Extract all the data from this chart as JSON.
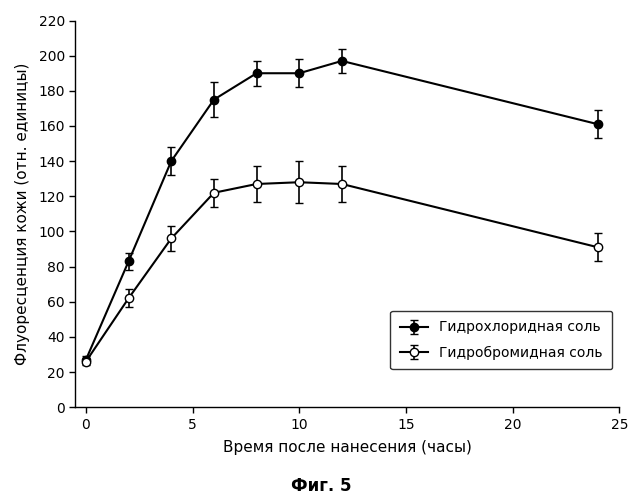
{
  "series1_name": "Гидрохлоридная соль",
  "series2_name": "Гидробромидная соль",
  "series1_x": [
    0,
    2,
    4,
    6,
    8,
    10,
    12,
    24
  ],
  "series1_y": [
    27,
    83,
    140,
    175,
    190,
    190,
    197,
    161
  ],
  "series1_yerr": [
    2,
    5,
    8,
    10,
    7,
    8,
    7,
    8
  ],
  "series2_x": [
    0,
    2,
    4,
    6,
    8,
    10,
    12,
    24
  ],
  "series2_y": [
    26,
    62,
    96,
    122,
    127,
    128,
    127,
    91
  ],
  "series2_yerr": [
    2,
    5,
    7,
    8,
    10,
    12,
    10,
    8
  ],
  "xlabel": "Время после нанесения (часы)",
  "ylabel": "Флуоресценция кожи (отн. единицы)",
  "caption": "Фиг. 5",
  "xlim": [
    -0.5,
    25
  ],
  "ylim": [
    0,
    220
  ],
  "xticks": [
    0,
    5,
    10,
    15,
    20,
    25
  ],
  "yticks": [
    0,
    20,
    40,
    60,
    80,
    100,
    120,
    140,
    160,
    180,
    200,
    220
  ],
  "figsize": [
    6.43,
    5.0
  ],
  "dpi": 100,
  "background_color": "#ffffff",
  "line_color": "#000000",
  "linewidth": 1.5,
  "markersize": 6,
  "capsize": 3,
  "elinewidth": 1.2
}
